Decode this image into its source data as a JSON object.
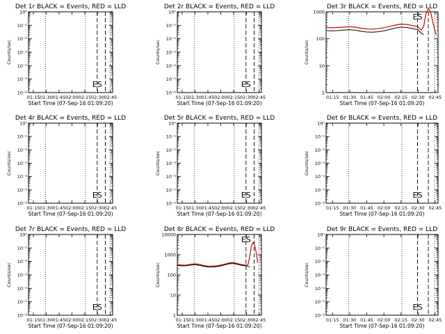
{
  "chart_data": [
    {
      "type": "line",
      "title": "Det 1r BLACK = Events, RED = LLD",
      "xlabel": "Start Time (07-Sep-16 01:09:20)",
      "ylabel": "Counts/sec",
      "x_ticks": [
        "01:15",
        "01:30",
        "01:45",
        "02:00",
        "02:15",
        "02:30",
        "02:45"
      ],
      "xlim": [
        "01:09:20",
        "02:47:30"
      ],
      "yscale": "log",
      "y_ticks": [
        "10⁰",
        "10⁻¹",
        "10⁻²",
        "10⁻³",
        "10⁻⁴",
        "10⁻⁵",
        "10⁻⁶"
      ],
      "y_values": [
        1,
        0.1,
        0.01,
        0.001,
        0.0001,
        1e-05,
        1e-06
      ],
      "ylim": [
        1e-06,
        1
      ],
      "dotted_lines": [
        "01:29:00",
        "02:15:50",
        "02:44:30"
      ],
      "dashed_lines": [
        "02:29:30",
        "02:39:00"
      ],
      "annotation": "ES",
      "series": []
    },
    {
      "type": "line",
      "title": "Det 2r BLACK = Events, RED = LLD",
      "xlabel": "Start Time (07-Sep-16 01:09:20)",
      "ylabel": "Counts/sec",
      "x_ticks": [
        "01:15",
        "01:30",
        "01:45",
        "02:00",
        "02:15",
        "02:30",
        "02:45"
      ],
      "xlim": [
        "01:09:20",
        "02:47:30"
      ],
      "yscale": "log",
      "y_ticks": [
        "10⁰",
        "10⁻¹",
        "10⁻²",
        "10⁻³",
        "10⁻⁴",
        "10⁻⁵",
        "10⁻⁶"
      ],
      "y_values": [
        1,
        0.1,
        0.01,
        0.001,
        0.0001,
        1e-05,
        1e-06
      ],
      "ylim": [
        1e-06,
        1
      ],
      "dotted_lines": [
        "01:29:00",
        "02:15:50",
        "02:44:30"
      ],
      "dashed_lines": [
        "02:29:30",
        "02:39:00"
      ],
      "annotation": "ES",
      "series": []
    },
    {
      "type": "line",
      "title": "Det 3r BLACK = Events, RED = LLD",
      "xlabel": "Start Time (07-Sep-16 01:09:20)",
      "ylabel": "Counts/sec",
      "x_ticks": [
        "01:15",
        "01:30",
        "01:45",
        "02:00",
        "02:15",
        "02:30",
        "02:45"
      ],
      "xlim": [
        "01:09:20",
        "02:47:30"
      ],
      "yscale": "log",
      "y_ticks": [
        "1",
        "10",
        "100",
        "1000"
      ],
      "y_values": [
        1,
        10,
        100,
        1000
      ],
      "ylim": [
        1,
        1000
      ],
      "dotted_lines": [
        "01:29:00",
        "02:15:50",
        "02:44:30"
      ],
      "dashed_lines": [
        "02:29:30",
        "02:39:00"
      ],
      "annotation": "ES",
      "series": [
        {
          "color": "#d00000",
          "x": [
            "01:10:00",
            "01:15:00",
            "01:20:00",
            "01:25:00",
            "01:30:00",
            "01:35:00",
            "01:40:00",
            "01:45:00",
            "01:50:00",
            "01:55:00",
            "02:00:00",
            "02:05:00",
            "02:10:00",
            "02:15:00",
            "02:20:00",
            "02:25:00",
            "02:30:00",
            "02:31:00",
            "02:33:00",
            "02:35:00",
            "02:37:00",
            "02:39:00",
            "02:41:00",
            "02:43:00",
            "02:45:00",
            "02:46:00"
          ],
          "y": [
            260,
            255,
            262,
            270,
            280,
            268,
            245,
            230,
            228,
            236,
            255,
            285,
            320,
            350,
            340,
            310,
            280,
            240,
            210,
            300,
            900,
            1300,
            1000,
            400,
            180,
            140
          ]
        },
        {
          "color": "#000000",
          "x": [
            "01:10:00",
            "01:15:00",
            "01:20:00",
            "01:25:00",
            "01:30:00",
            "01:35:00",
            "01:40:00",
            "01:45:00",
            "01:50:00",
            "01:55:00",
            "02:00:00",
            "02:05:00",
            "02:10:00",
            "02:15:00",
            "02:20:00",
            "02:25:00",
            "02:30:00",
            "02:31:00",
            "02:33:00",
            "02:35:00"
          ],
          "y": [
            200,
            196,
            202,
            210,
            218,
            208,
            190,
            178,
            176,
            182,
            198,
            220,
            248,
            270,
            262,
            240,
            215,
            190,
            160,
            140
          ]
        }
      ]
    },
    {
      "type": "line",
      "title": "Det 4r BLACK = Events, RED = LLD",
      "xlabel": "Start Time (07-Sep-16 01:09:20)",
      "ylabel": "Counts/sec",
      "x_ticks": [
        "01:15",
        "01:30",
        "01:45",
        "02:00",
        "02:15",
        "02:30",
        "02:45"
      ],
      "xlim": [
        "01:09:20",
        "02:47:30"
      ],
      "yscale": "log",
      "y_ticks": [
        "10⁰",
        "10⁻¹",
        "10⁻²",
        "10⁻³",
        "10⁻⁴",
        "10⁻⁵",
        "10⁻⁶"
      ],
      "y_values": [
        1,
        0.1,
        0.01,
        0.001,
        0.0001,
        1e-05,
        1e-06
      ],
      "ylim": [
        1e-06,
        1
      ],
      "dotted_lines": [
        "01:29:00",
        "02:15:50",
        "02:44:30"
      ],
      "dashed_lines": [
        "02:29:30",
        "02:39:00"
      ],
      "annotation": "ES",
      "series": []
    },
    {
      "type": "line",
      "title": "Det 5r BLACK = Events, RED = LLD",
      "xlabel": "Start Time (07-Sep-16 01:09:20)",
      "ylabel": "Counts/sec",
      "x_ticks": [
        "01:15",
        "01:30",
        "01:45",
        "02:00",
        "02:15",
        "02:30",
        "02:45"
      ],
      "xlim": [
        "01:09:20",
        "02:47:30"
      ],
      "yscale": "log",
      "y_ticks": [
        "10⁰",
        "10⁻¹",
        "10⁻²",
        "10⁻³",
        "10⁻⁴",
        "10⁻⁵",
        "10⁻⁶"
      ],
      "y_values": [
        1,
        0.1,
        0.01,
        0.001,
        0.0001,
        1e-05,
        1e-06
      ],
      "ylim": [
        1e-06,
        1
      ],
      "dotted_lines": [
        "01:29:00",
        "02:15:50",
        "02:44:30"
      ],
      "dashed_lines": [
        "02:29:30",
        "02:39:00"
      ],
      "annotation": "ES",
      "series": []
    },
    {
      "type": "line",
      "title": "Det 6r BLACK = Events, RED = LLD",
      "xlabel": "Start Time (07-Sep-16 01:09:20)",
      "ylabel": "Counts/sec",
      "x_ticks": [
        "01:15",
        "01:30",
        "01:45",
        "02:00",
        "02:15",
        "02:30",
        "02:45"
      ],
      "xlim": [
        "01:09:20",
        "02:47:30"
      ],
      "yscale": "log",
      "y_ticks": [
        "10⁰",
        "10⁻¹",
        "10⁻²",
        "10⁻³",
        "10⁻⁴",
        "10⁻⁵",
        "10⁻⁶"
      ],
      "y_values": [
        1,
        0.1,
        0.01,
        0.001,
        0.0001,
        1e-05,
        1e-06
      ],
      "ylim": [
        1e-06,
        1
      ],
      "dotted_lines": [
        "01:29:00",
        "02:15:50",
        "02:44:30"
      ],
      "dashed_lines": [
        "02:29:30",
        "02:39:00"
      ],
      "annotation": "ES",
      "series": []
    },
    {
      "type": "line",
      "title": "Det 7r BLACK = Events, RED = LLD",
      "xlabel": "Start Time (07-Sep-16 01:09:20)",
      "ylabel": "Counts/sec",
      "x_ticks": [
        "01:15",
        "01:30",
        "01:45",
        "02:00",
        "02:15",
        "02:30",
        "02:45"
      ],
      "xlim": [
        "01:09:20",
        "02:47:30"
      ],
      "yscale": "log",
      "y_ticks": [
        "10⁰",
        "10⁻¹",
        "10⁻²",
        "10⁻³",
        "10⁻⁴",
        "10⁻⁵",
        "10⁻⁶"
      ],
      "y_values": [
        1,
        0.1,
        0.01,
        0.001,
        0.0001,
        1e-05,
        1e-06
      ],
      "ylim": [
        1e-06,
        1
      ],
      "dotted_lines": [
        "01:29:00",
        "02:15:50",
        "02:44:30"
      ],
      "dashed_lines": [
        "02:29:30",
        "02:39:00"
      ],
      "annotation": "ES",
      "series": []
    },
    {
      "type": "line",
      "title": "Det 8r BLACK = Events, RED = LLD",
      "xlabel": "Start Time (07-Sep-16 01:09:20)",
      "ylabel": "Counts/sec",
      "x_ticks": [
        "01:15",
        "01:30",
        "01:45",
        "02:00",
        "02:15",
        "02:30",
        "02:45"
      ],
      "xlim": [
        "01:09:20",
        "02:47:30"
      ],
      "yscale": "log",
      "y_ticks": [
        "1",
        "10",
        "100",
        "1000",
        "10000"
      ],
      "y_values": [
        1,
        10,
        100,
        1000,
        10000
      ],
      "ylim": [
        1,
        10000
      ],
      "dotted_lines": [
        "01:29:00",
        "02:15:50",
        "02:44:30"
      ],
      "dashed_lines": [
        "02:29:30",
        "02:39:00"
      ],
      "annotation": "ES",
      "series": [
        {
          "color": "#d00000",
          "x": [
            "01:10:00",
            "01:15:00",
            "01:20:00",
            "01:25:00",
            "01:30:00",
            "01:35:00",
            "01:40:00",
            "01:45:00",
            "01:50:00",
            "01:55:00",
            "02:00:00",
            "02:05:00",
            "02:10:00",
            "02:15:00",
            "02:20:00",
            "02:25:00",
            "02:30:00",
            "02:32:00",
            "02:34:00",
            "02:36:00",
            "02:38:00",
            "02:40:00",
            "02:42:00",
            "02:43:00"
          ],
          "y": [
            320,
            305,
            310,
            335,
            355,
            330,
            290,
            270,
            268,
            280,
            305,
            345,
            390,
            400,
            360,
            320,
            300,
            330,
            900,
            3000,
            4000,
            2600,
            900,
            400
          ]
        },
        {
          "color": "#000000",
          "x": [
            "01:10:00",
            "01:15:00",
            "01:20:00",
            "01:25:00",
            "01:30:00",
            "01:35:00",
            "01:40:00",
            "01:45:00",
            "01:50:00",
            "01:55:00",
            "02:00:00",
            "02:05:00",
            "02:10:00",
            "02:15:00",
            "02:20:00",
            "02:25:00",
            "02:30:00",
            "02:32:00",
            "02:34:00"
          ],
          "y": [
            290,
            278,
            282,
            305,
            322,
            300,
            265,
            248,
            246,
            256,
            278,
            315,
            355,
            365,
            330,
            295,
            278,
            265,
            250
          ]
        }
      ]
    },
    {
      "type": "line",
      "title": "Det 9r BLACK = Events, RED = LLD",
      "xlabel": "Start Time (07-Sep-16 01:09:20)",
      "ylabel": "Counts/sec",
      "x_ticks": [
        "01:15",
        "01:30",
        "01:45",
        "02:00",
        "02:15",
        "02:30",
        "02:45"
      ],
      "xlim": [
        "01:09:20",
        "02:47:30"
      ],
      "yscale": "log",
      "y_ticks": [
        "10⁰",
        "10⁻¹",
        "10⁻²",
        "10⁻³",
        "10⁻⁴",
        "10⁻⁵",
        "10⁻⁶"
      ],
      "y_values": [
        1,
        0.1,
        0.01,
        0.001,
        0.0001,
        1e-05,
        1e-06
      ],
      "ylim": [
        1e-06,
        1
      ],
      "dotted_lines": [
        "01:29:00",
        "02:15:50",
        "02:44:30"
      ],
      "dashed_lines": [
        "02:29:30",
        "02:39:00"
      ],
      "annotation": "ES",
      "series": []
    }
  ]
}
